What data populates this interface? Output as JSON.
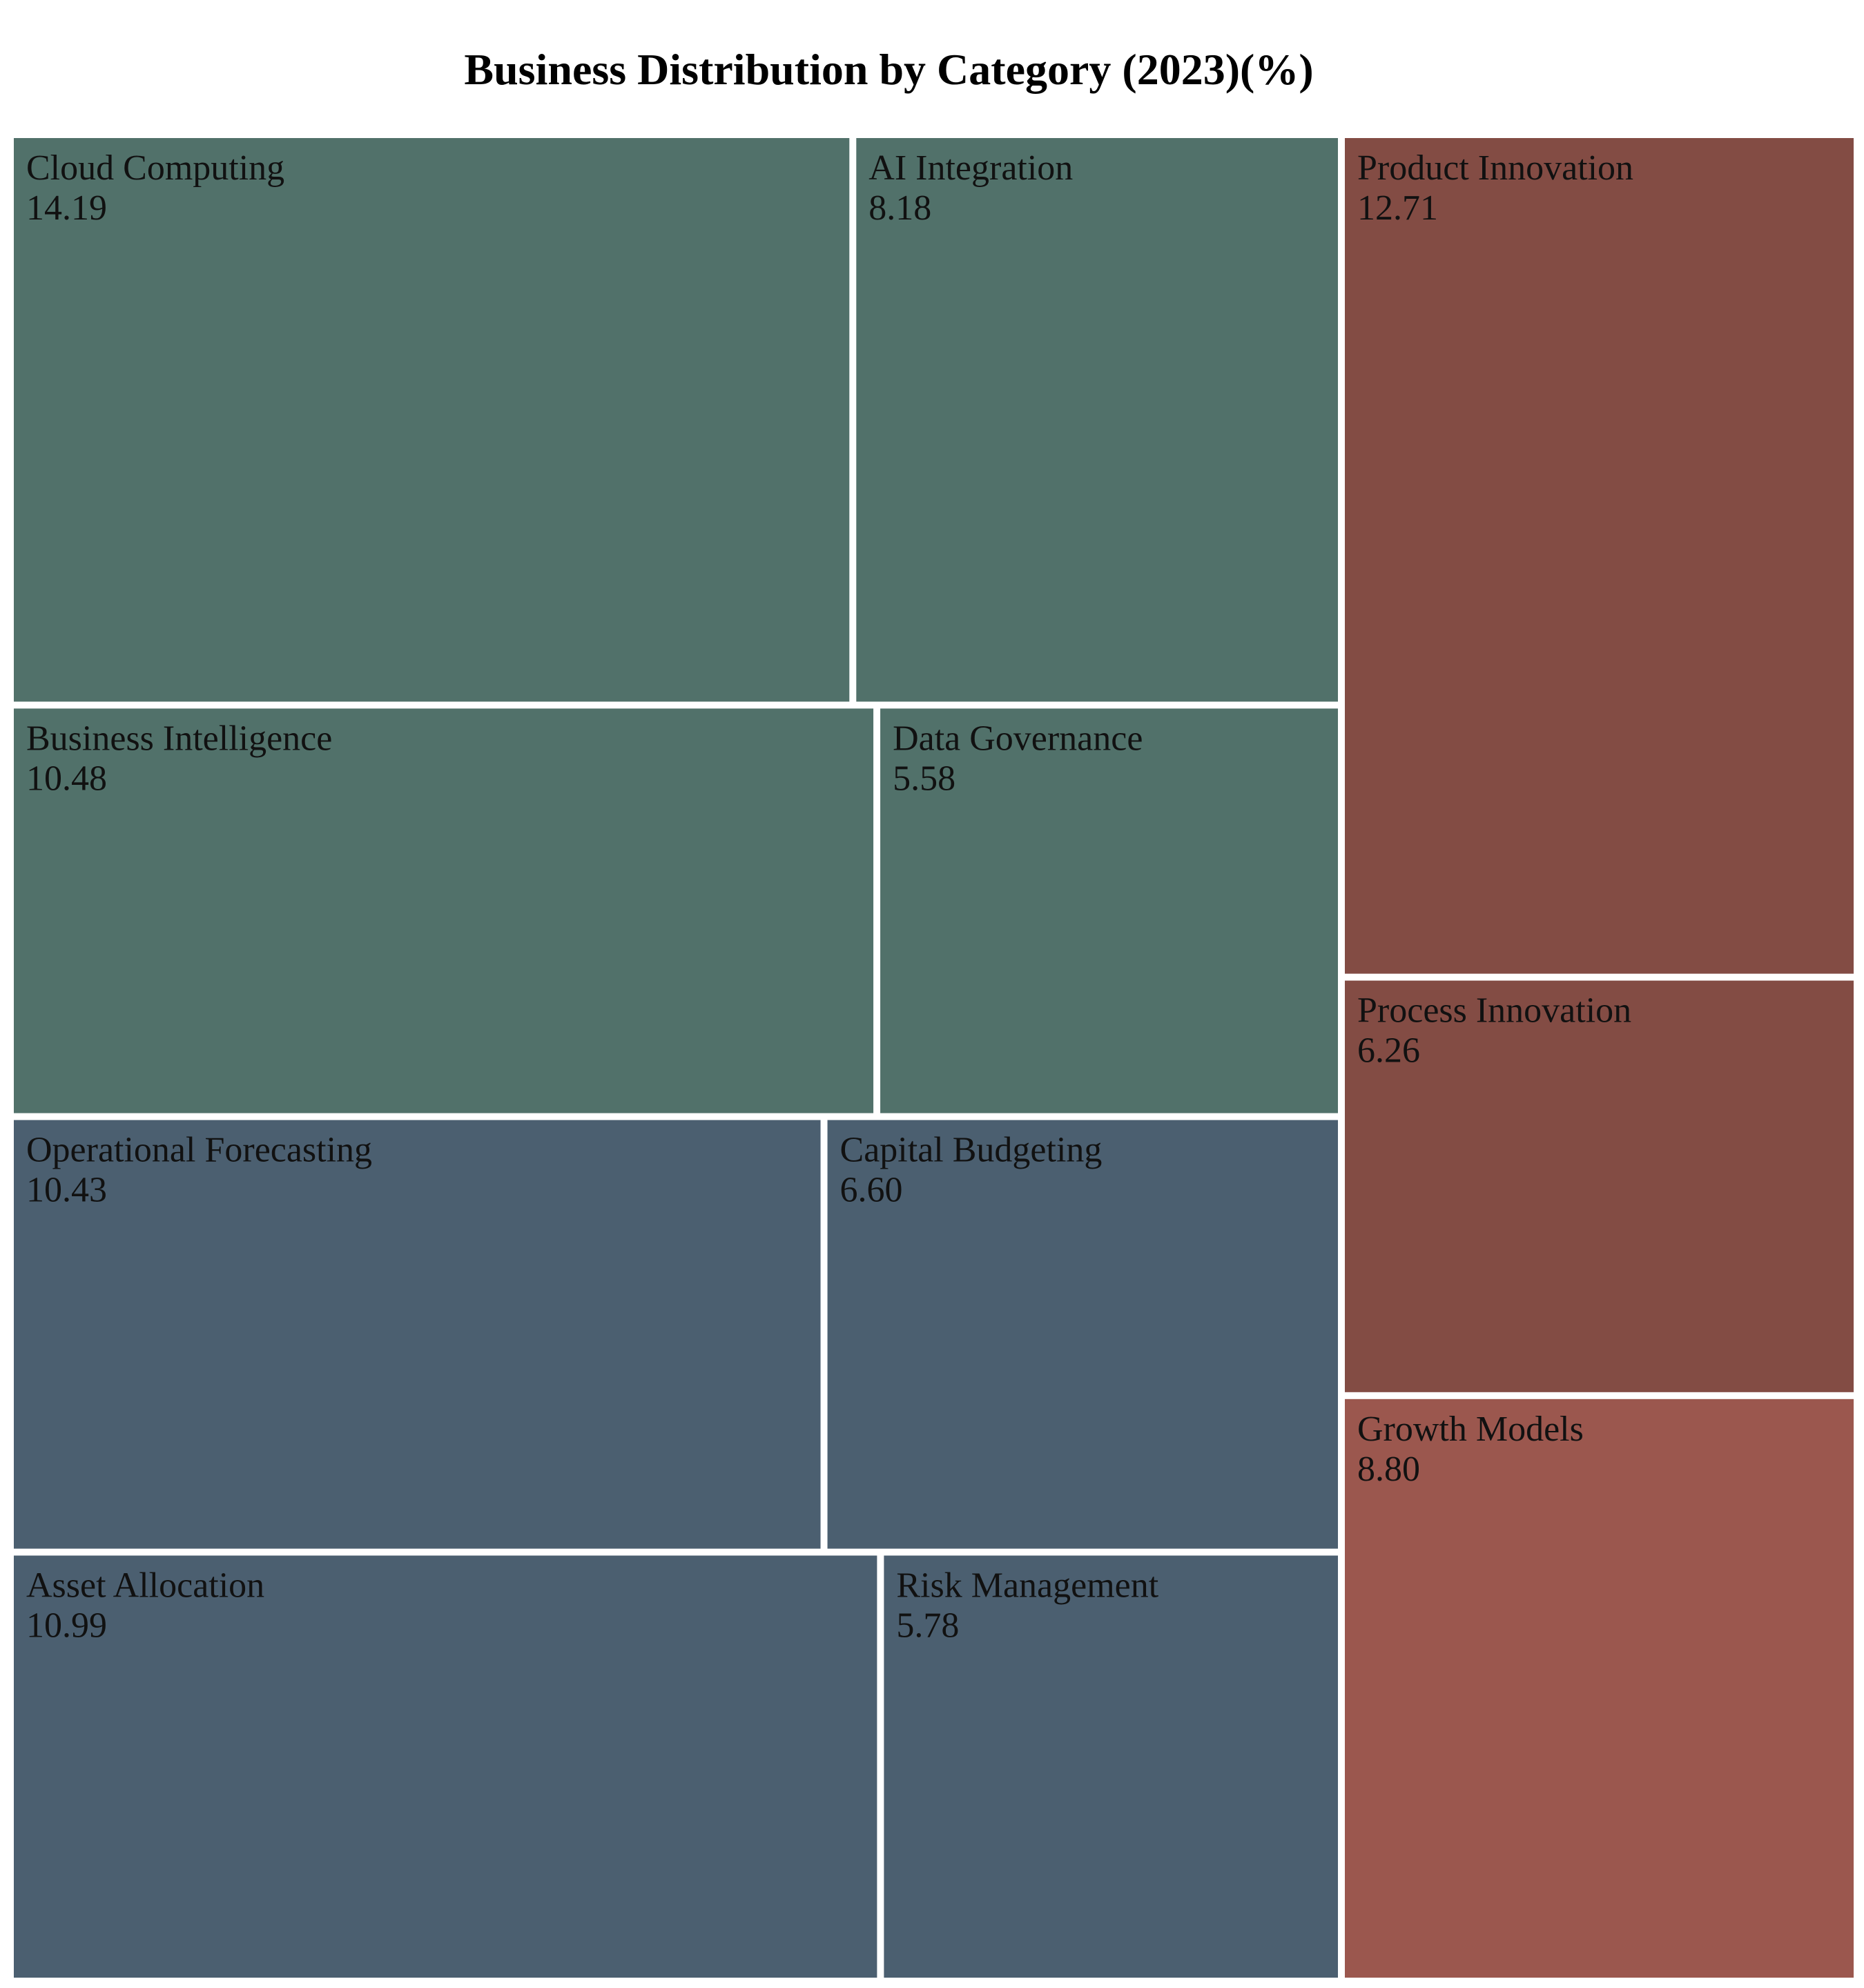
{
  "chart_data": {
    "type": "treemap",
    "title": "Business Distribution by Category (2023)(%)",
    "groups": [
      {
        "color": "#51716a",
        "items": [
          {
            "label": "Cloud Computing",
            "value": 14.19,
            "display": "14.19"
          },
          {
            "label": "AI Integration",
            "value": 8.18,
            "display": "8.18"
          },
          {
            "label": "Business Intelligence",
            "value": 10.48,
            "display": "10.48"
          },
          {
            "label": "Data Governance",
            "value": 5.58,
            "display": "5.58"
          }
        ]
      },
      {
        "color": "#4b5f70",
        "items": [
          {
            "label": "Operational Forecasting",
            "value": 10.43,
            "display": "10.43"
          },
          {
            "label": "Capital Budgeting",
            "value": 6.6,
            "display": "6.60"
          },
          {
            "label": "Asset Allocation",
            "value": 10.99,
            "display": "10.99"
          },
          {
            "label": "Risk Management",
            "value": 5.78,
            "display": "5.78"
          }
        ]
      },
      {
        "color": "#834c44",
        "items": [
          {
            "label": "Product Innovation",
            "value": 12.71,
            "display": "12.71"
          },
          {
            "label": "Process Innovation",
            "value": 6.26,
            "display": "6.26"
          }
        ]
      },
      {
        "color": "#9b574e",
        "items": [
          {
            "label": "Growth Models",
            "value": 8.8,
            "display": "8.80"
          }
        ]
      }
    ]
  }
}
